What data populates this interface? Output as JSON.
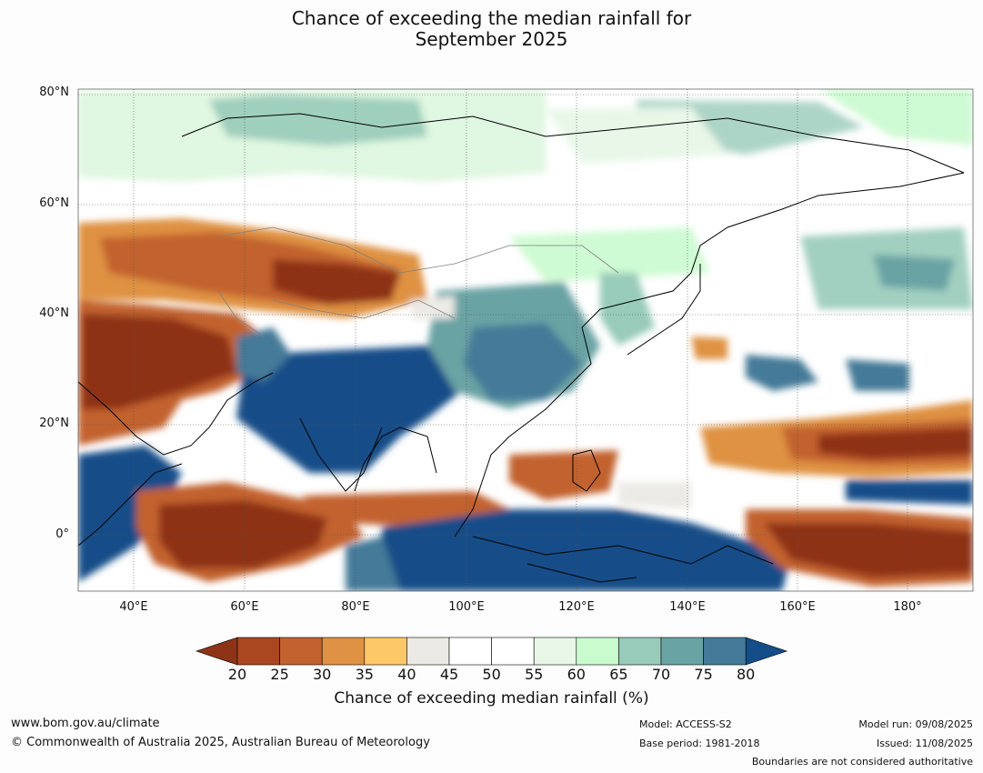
{
  "title": {
    "line1": "Chance of exceeding the median rainfall for",
    "line2": "September 2025"
  },
  "map": {
    "lat_ticks": [
      "80°N",
      "60°N",
      "40°N",
      "20°N",
      "0°"
    ],
    "lon_ticks": [
      "40°E",
      "60°E",
      "80°E",
      "100°E",
      "120°E",
      "140°E",
      "160°E",
      "180°"
    ],
    "region": {
      "lon_range": [
        30,
        190
      ],
      "lat_range": [
        -10,
        81
      ]
    }
  },
  "colorbar": {
    "labels": [
      "20",
      "25",
      "30",
      "35",
      "40",
      "45",
      "50",
      "55",
      "60",
      "65",
      "70",
      "75",
      "80"
    ],
    "colors": [
      "#8e3318",
      "#ab4720",
      "#c2622e",
      "#df9243",
      "#fdc868",
      "#eceae5",
      "#ffffff",
      "#ffffff",
      "#e8f7e8",
      "#c9fbce",
      "#98cbb9",
      "#6aa3a4",
      "#457a98",
      "#144d88"
    ],
    "title": "Chance of exceeding median rainfall (%)"
  },
  "footer": {
    "website": "www.bom.gov.au/climate",
    "copyright": "© Commonwealth of Australia 2025, Australian Bureau of Meteorology",
    "model": "Model: ACCESS-S2",
    "base_period": "Base period: 1981-2018",
    "model_run": "Model run: 09/08/2025",
    "issued": "Issued: 11/08/2025",
    "disclaimer": "Boundaries are not considered authoritative"
  }
}
